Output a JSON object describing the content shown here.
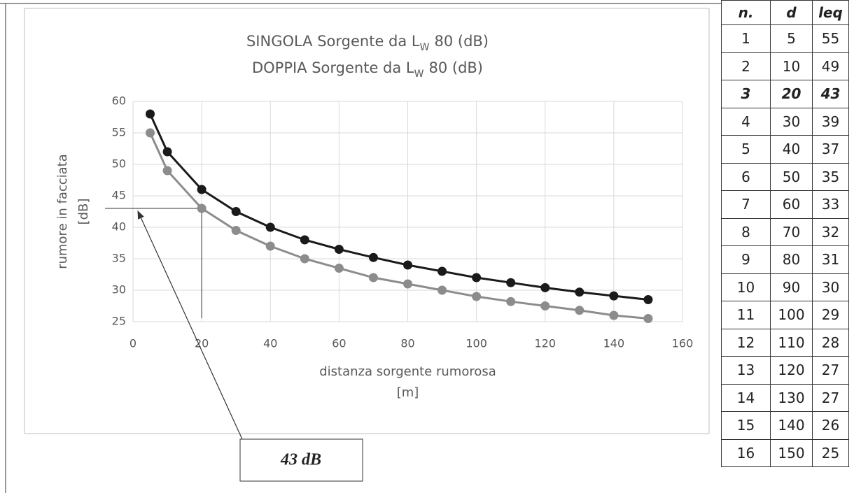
{
  "chart_data": {
    "type": "line",
    "title_lines": [
      [
        "SINGOLA Sorgente da L",
        "W",
        "80 (dB)"
      ],
      [
        "DOPPIA Sorgente da L",
        "W",
        "80 (dB)"
      ]
    ],
    "xlabel": [
      "distanza sorgente rumorosa",
      "[m]"
    ],
    "ylabel": [
      "rumore in facciata",
      "[dB]"
    ],
    "x": [
      5,
      10,
      20,
      30,
      40,
      50,
      60,
      70,
      80,
      90,
      100,
      110,
      120,
      130,
      140,
      150
    ],
    "series": [
      {
        "color": "#8c8c8c",
        "values": [
          55,
          49,
          43,
          39.5,
          37,
          35,
          33.5,
          32,
          31,
          30,
          29,
          28.2,
          27.5,
          26.8,
          26,
          25.5
        ]
      },
      {
        "color": "#1a1a1a",
        "values": [
          58,
          52,
          46,
          42.5,
          40,
          38,
          36.5,
          35.2,
          34,
          33,
          32,
          31.2,
          30.4,
          29.7,
          29.1,
          28.5
        ]
      }
    ],
    "xlim": [
      0,
      160
    ],
    "xticks": [
      0,
      20,
      40,
      60,
      80,
      100,
      120,
      140,
      160
    ],
    "ylim": [
      25,
      60
    ],
    "yticks": [
      25,
      30,
      35,
      40,
      45,
      50,
      55,
      60
    ],
    "grid": true,
    "annotation": {
      "text": "43 dB",
      "x": 20,
      "y": 43
    }
  },
  "table": {
    "header": [
      "n.",
      "d",
      "leq"
    ],
    "highlight_row": 2,
    "rows": [
      [
        "1",
        "5",
        "55"
      ],
      [
        "2",
        "10",
        "49"
      ],
      [
        "3",
        "20",
        "43"
      ],
      [
        "4",
        "30",
        "39"
      ],
      [
        "5",
        "40",
        "37"
      ],
      [
        "6",
        "50",
        "35"
      ],
      [
        "7",
        "60",
        "33"
      ],
      [
        "8",
        "70",
        "32"
      ],
      [
        "9",
        "80",
        "31"
      ],
      [
        "10",
        "90",
        "30"
      ],
      [
        "11",
        "100",
        "29"
      ],
      [
        "12",
        "110",
        "28"
      ],
      [
        "13",
        "120",
        "27"
      ],
      [
        "14",
        "130",
        "27"
      ],
      [
        "15",
        "140",
        "26"
      ],
      [
        "16",
        "150",
        "25"
      ]
    ]
  }
}
